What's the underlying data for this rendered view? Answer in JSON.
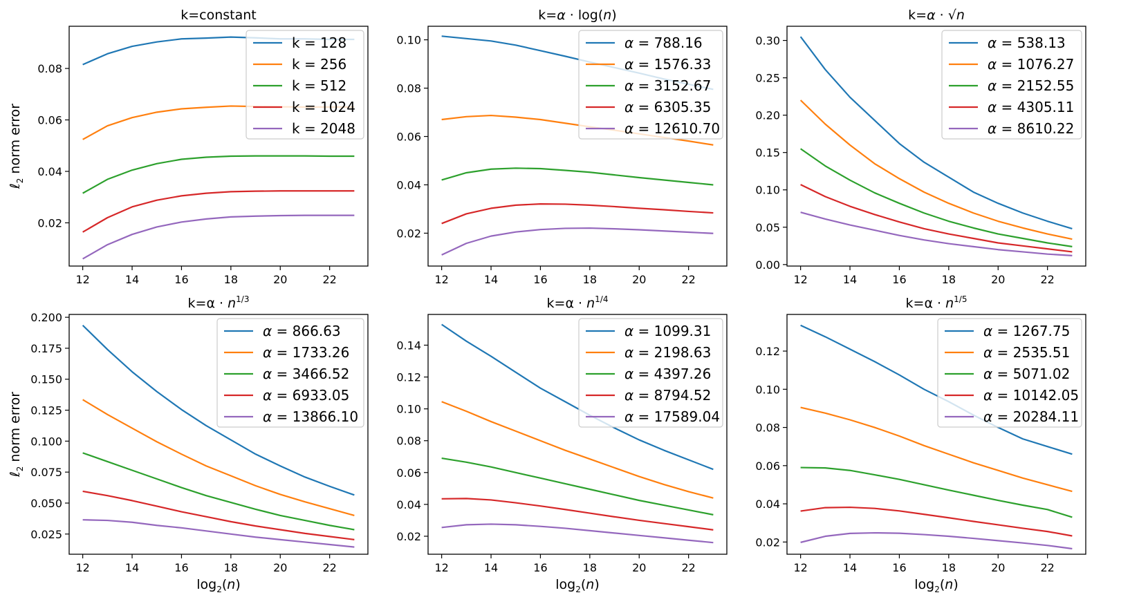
{
  "chart_data": [
    {
      "type": "line",
      "title": "k=constant",
      "xlabel": "",
      "ylabel": "ℓ2 norm error",
      "xlim": [
        11.45,
        23.55
      ],
      "ylim": [
        0.0032,
        0.0964
      ],
      "xticks": [
        12,
        14,
        16,
        18,
        20,
        22
      ],
      "yticks": [
        0.02,
        0.04,
        0.06,
        0.08
      ],
      "ytick_labels": [
        "0.02",
        "0.04",
        "0.06",
        "0.08"
      ],
      "legend_loc": "upper right",
      "x": [
        12,
        13,
        14,
        15,
        16,
        17,
        18,
        19,
        20,
        21,
        22,
        23
      ],
      "series": [
        {
          "name": "k = 128",
          "color": "#1f77b4",
          "values": [
            0.0815,
            0.0857,
            0.0886,
            0.0903,
            0.0915,
            0.0918,
            0.0922,
            0.0919,
            0.0915,
            0.0915,
            0.0913,
            0.0913
          ]
        },
        {
          "name": "k = 256",
          "color": "#ff7f0e",
          "values": [
            0.0524,
            0.0577,
            0.0609,
            0.063,
            0.0643,
            0.0649,
            0.0654,
            0.0652,
            0.0651,
            0.065,
            0.065,
            0.065
          ]
        },
        {
          "name": "k = 512",
          "color": "#2ca02c",
          "values": [
            0.0315,
            0.0369,
            0.0405,
            0.043,
            0.0447,
            0.0455,
            0.0459,
            0.046,
            0.046,
            0.046,
            0.0459,
            0.0459
          ]
        },
        {
          "name": "k = 1024",
          "color": "#d62728",
          "values": [
            0.0164,
            0.022,
            0.0262,
            0.0288,
            0.0305,
            0.0315,
            0.0321,
            0.0323,
            0.0324,
            0.0324,
            0.0324,
            0.0324
          ]
        },
        {
          "name": "k = 2048",
          "color": "#9467bd",
          "values": [
            0.006,
            0.0115,
            0.0155,
            0.0184,
            0.0203,
            0.0215,
            0.0223,
            0.0226,
            0.0228,
            0.0229,
            0.0229,
            0.0229
          ]
        }
      ]
    },
    {
      "type": "line",
      "title": "k=α · log(n)",
      "xlabel": "",
      "ylabel": "",
      "xlim": [
        11.45,
        23.55
      ],
      "ylim": [
        0.0064,
        0.1056
      ],
      "xticks": [
        12,
        14,
        16,
        18,
        20,
        22
      ],
      "yticks": [
        0.02,
        0.04,
        0.06,
        0.08,
        0.1
      ],
      "ytick_labels": [
        "0.02",
        "0.04",
        "0.06",
        "0.08",
        "0.10"
      ],
      "legend_loc": "upper right",
      "x": [
        12,
        13,
        14,
        15,
        16,
        17,
        18,
        19,
        20,
        21,
        22,
        23
      ],
      "series": [
        {
          "name": "α = 788.16",
          "color": "#1f77b4",
          "values": [
            0.1015,
            0.1005,
            0.0995,
            0.0978,
            0.0955,
            0.0932,
            0.0908,
            0.0885,
            0.0862,
            0.0838,
            0.0816,
            0.0795
          ]
        },
        {
          "name": "α = 1576.33",
          "color": "#ff7f0e",
          "values": [
            0.067,
            0.0682,
            0.0687,
            0.068,
            0.067,
            0.0655,
            0.064,
            0.0626,
            0.0611,
            0.0596,
            0.0581,
            0.0565
          ]
        },
        {
          "name": "α = 3152.67",
          "color": "#2ca02c",
          "values": [
            0.042,
            0.045,
            0.0465,
            0.0469,
            0.0467,
            0.046,
            0.0452,
            0.0441,
            0.043,
            0.042,
            0.041,
            0.04
          ]
        },
        {
          "name": "α = 6305.35",
          "color": "#d62728",
          "values": [
            0.024,
            0.028,
            0.0303,
            0.0316,
            0.0321,
            0.032,
            0.0316,
            0.031,
            0.0303,
            0.0297,
            0.029,
            0.0284
          ]
        },
        {
          "name": "α = 12610.70",
          "color": "#9467bd",
          "values": [
            0.011,
            0.0158,
            0.0188,
            0.0205,
            0.0215,
            0.022,
            0.0221,
            0.0218,
            0.0214,
            0.0209,
            0.0204,
            0.0199
          ]
        }
      ]
    },
    {
      "type": "line",
      "title": "k=α · √n",
      "xlabel": "",
      "ylabel": "",
      "xlim": [
        11.45,
        23.55
      ],
      "ylim": [
        -0.002,
        0.319
      ],
      "xticks": [
        12,
        14,
        16,
        18,
        20,
        22
      ],
      "yticks": [
        0.0,
        0.05,
        0.1,
        0.15,
        0.2,
        0.25,
        0.3
      ],
      "ytick_labels": [
        "0.00",
        "0.05",
        "0.10",
        "0.15",
        "0.20",
        "0.25",
        "0.30"
      ],
      "legend_loc": "upper right",
      "x": [
        12,
        13,
        14,
        15,
        16,
        17,
        18,
        19,
        20,
        21,
        22,
        23
      ],
      "series": [
        {
          "name": "α = 538.13",
          "color": "#1f77b4",
          "values": [
            0.305,
            0.261,
            0.224,
            0.193,
            0.162,
            0.137,
            0.117,
            0.097,
            0.082,
            0.069,
            0.058,
            0.048
          ]
        },
        {
          "name": "α = 1076.27",
          "color": "#ff7f0e",
          "values": [
            0.22,
            0.188,
            0.16,
            0.135,
            0.115,
            0.097,
            0.082,
            0.069,
            0.058,
            0.049,
            0.041,
            0.034
          ]
        },
        {
          "name": "α = 2152.55",
          "color": "#2ca02c",
          "values": [
            0.155,
            0.132,
            0.113,
            0.096,
            0.082,
            0.069,
            0.058,
            0.049,
            0.041,
            0.035,
            0.029,
            0.024
          ]
        },
        {
          "name": "α = 4305.11",
          "color": "#d62728",
          "values": [
            0.107,
            0.091,
            0.078,
            0.067,
            0.057,
            0.048,
            0.041,
            0.035,
            0.029,
            0.025,
            0.021,
            0.017
          ]
        },
        {
          "name": "α = 8610.22",
          "color": "#9467bd",
          "values": [
            0.07,
            0.061,
            0.053,
            0.046,
            0.039,
            0.033,
            0.028,
            0.024,
            0.02,
            0.017,
            0.014,
            0.012
          ]
        }
      ]
    },
    {
      "type": "line",
      "title": "k=α · n^1/3",
      "xlabel": "log2(n)",
      "ylabel": "ℓ2 norm error",
      "xlim": [
        11.45,
        23.55
      ],
      "ylim": [
        0.0087,
        0.2023
      ],
      "xticks": [
        12,
        14,
        16,
        18,
        20,
        22
      ],
      "yticks": [
        0.025,
        0.05,
        0.075,
        0.1,
        0.125,
        0.15,
        0.175,
        0.2
      ],
      "ytick_labels": [
        "0.025",
        "0.050",
        "0.075",
        "0.100",
        "0.125",
        "0.150",
        "0.175",
        "0.200"
      ],
      "legend_loc": "upper right",
      "x": [
        12,
        13,
        14,
        15,
        16,
        17,
        18,
        19,
        20,
        21,
        22,
        23
      ],
      "series": [
        {
          "name": "α = 866.63",
          "color": "#1f77b4",
          "values": [
            0.1935,
            0.174,
            0.156,
            0.14,
            0.1255,
            0.1125,
            0.101,
            0.0895,
            0.08,
            0.071,
            0.0635,
            0.0565
          ]
        },
        {
          "name": "α = 1733.26",
          "color": "#ff7f0e",
          "values": [
            0.1335,
            0.1215,
            0.1105,
            0.0995,
            0.0895,
            0.08,
            0.072,
            0.064,
            0.057,
            0.051,
            0.0455,
            0.04
          ]
        },
        {
          "name": "α = 3466.52",
          "color": "#2ca02c",
          "values": [
            0.0905,
            0.0835,
            0.0765,
            0.0695,
            0.0625,
            0.056,
            0.0505,
            0.045,
            0.04,
            0.036,
            0.032,
            0.0285
          ]
        },
        {
          "name": "α = 6933.05",
          "color": "#d62728",
          "values": [
            0.0595,
            0.056,
            0.052,
            0.0475,
            0.043,
            0.039,
            0.035,
            0.0315,
            0.0285,
            0.0255,
            0.023,
            0.0205
          ]
        },
        {
          "name": "α = 13866.10",
          "color": "#9467bd",
          "values": [
            0.0365,
            0.036,
            0.0345,
            0.032,
            0.03,
            0.0275,
            0.025,
            0.0225,
            0.0205,
            0.0185,
            0.0165,
            0.0145
          ]
        }
      ]
    },
    {
      "type": "line",
      "title": "k=α · n^1/4",
      "xlabel": "log2(n)",
      "ylabel": "",
      "xlim": [
        11.45,
        23.55
      ],
      "ylim": [
        0.0087,
        0.1593
      ],
      "xticks": [
        12,
        14,
        16,
        18,
        20,
        22
      ],
      "yticks": [
        0.02,
        0.04,
        0.06,
        0.08,
        0.1,
        0.12,
        0.14
      ],
      "ytick_labels": [
        "0.02",
        "0.04",
        "0.06",
        "0.08",
        "0.10",
        "0.12",
        "0.14"
      ],
      "legend_loc": "upper right",
      "x": [
        12,
        13,
        14,
        15,
        16,
        17,
        18,
        19,
        20,
        21,
        22,
        23
      ],
      "series": [
        {
          "name": "α = 1099.31",
          "color": "#1f77b4",
          "values": [
            0.153,
            0.1425,
            0.133,
            0.123,
            0.113,
            0.1045,
            0.096,
            0.088,
            0.0805,
            0.074,
            0.068,
            0.062
          ]
        },
        {
          "name": "α = 2198.63",
          "color": "#ff7f0e",
          "values": [
            0.1045,
            0.0985,
            0.092,
            0.086,
            0.08,
            0.074,
            0.0685,
            0.063,
            0.0575,
            0.0525,
            0.048,
            0.044
          ]
        },
        {
          "name": "α = 4397.26",
          "color": "#2ca02c",
          "values": [
            0.069,
            0.0665,
            0.0635,
            0.06,
            0.0565,
            0.053,
            0.0495,
            0.046,
            0.0425,
            0.0395,
            0.0365,
            0.0335
          ]
        },
        {
          "name": "α = 8794.52",
          "color": "#d62728",
          "values": [
            0.0435,
            0.0437,
            0.0428,
            0.041,
            0.039,
            0.0368,
            0.0345,
            0.0322,
            0.03,
            0.028,
            0.026,
            0.024
          ]
        },
        {
          "name": "α = 17589.04",
          "color": "#9467bd",
          "values": [
            0.0255,
            0.0272,
            0.0276,
            0.0272,
            0.0262,
            0.025,
            0.0235,
            0.022,
            0.0205,
            0.019,
            0.0175,
            0.016
          ]
        }
      ]
    },
    {
      "type": "line",
      "title": "k=α · n^1/5",
      "xlabel": "log2(n)",
      "ylabel": "",
      "xlim": [
        11.45,
        23.55
      ],
      "ylim": [
        0.0136,
        0.1392
      ],
      "xticks": [
        12,
        14,
        16,
        18,
        20,
        22
      ],
      "yticks": [
        0.02,
        0.04,
        0.06,
        0.08,
        0.1,
        0.12
      ],
      "ytick_labels": [
        "0.02",
        "0.04",
        "0.06",
        "0.08",
        "0.10",
        "0.12"
      ],
      "legend_loc": "upper right",
      "x": [
        12,
        13,
        14,
        15,
        16,
        17,
        18,
        19,
        20,
        21,
        22,
        23
      ],
      "series": [
        {
          "name": "α = 1267.75",
          "color": "#1f77b4",
          "values": [
            0.1335,
            0.1275,
            0.121,
            0.1145,
            0.1075,
            0.1,
            0.0935,
            0.0865,
            0.08,
            0.074,
            0.07,
            0.066
          ]
        },
        {
          "name": "α = 2535.51",
          "color": "#ff7f0e",
          "values": [
            0.0905,
            0.0875,
            0.084,
            0.08,
            0.0755,
            0.0705,
            0.066,
            0.0615,
            0.0575,
            0.0535,
            0.05,
            0.0465
          ]
        },
        {
          "name": "α = 5071.02",
          "color": "#2ca02c",
          "values": [
            0.059,
            0.0588,
            0.0575,
            0.0552,
            0.0528,
            0.05,
            0.0472,
            0.0445,
            0.0418,
            0.0393,
            0.037,
            0.033
          ]
        },
        {
          "name": "α = 10142.05",
          "color": "#d62728",
          "values": [
            0.0362,
            0.038,
            0.0382,
            0.0376,
            0.0363,
            0.0345,
            0.0327,
            0.0308,
            0.029,
            0.0272,
            0.0255,
            0.0232
          ]
        },
        {
          "name": "α = 20284.11",
          "color": "#9467bd",
          "values": [
            0.0198,
            0.023,
            0.0245,
            0.0248,
            0.0246,
            0.0239,
            0.023,
            0.0219,
            0.0207,
            0.0195,
            0.0182,
            0.0165
          ]
        }
      ]
    }
  ]
}
